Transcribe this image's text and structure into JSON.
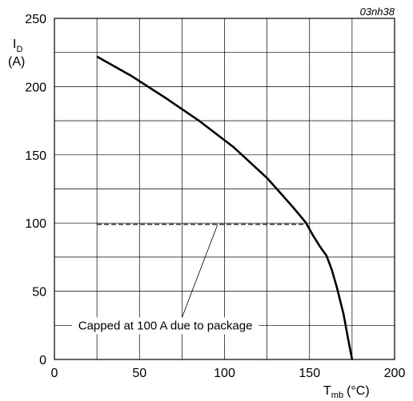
{
  "figure_id": "03nh38",
  "chart_data": {
    "type": "line",
    "title": "",
    "ylabel": {
      "main": "I",
      "sub": "D",
      "unit": "(A)"
    },
    "xlabel": {
      "main": "T",
      "sub": "mb",
      "unit": "(°C)"
    },
    "xlim": [
      0,
      200
    ],
    "ylim": [
      0,
      250
    ],
    "grid": true,
    "x_ticks": [
      0,
      50,
      100,
      150,
      200
    ],
    "y_ticks": [
      0,
      50,
      100,
      150,
      200,
      250
    ],
    "x_tick_labels": [
      "0",
      "50",
      "100",
      "150",
      "200"
    ],
    "y_tick_labels": [
      "0",
      "50",
      "100",
      "150",
      "200",
      "250"
    ],
    "series": [
      {
        "style": "solid",
        "x": [
          25,
          45,
          65,
          85,
          105,
          125,
          140,
          148,
          152,
          156,
          160,
          163,
          166,
          170,
          173,
          175
        ],
        "y": [
          222,
          208,
          192,
          175,
          156,
          133,
          112,
          100,
          91,
          83,
          76,
          66,
          53,
          33,
          13,
          0
        ]
      },
      {
        "style": "dashed",
        "x": [
          25,
          148
        ],
        "y": [
          99,
          99
        ]
      }
    ],
    "annotation": {
      "text": "Capped at 100 A due to package",
      "pointer_to": {
        "x": 96,
        "y": 99
      }
    }
  }
}
